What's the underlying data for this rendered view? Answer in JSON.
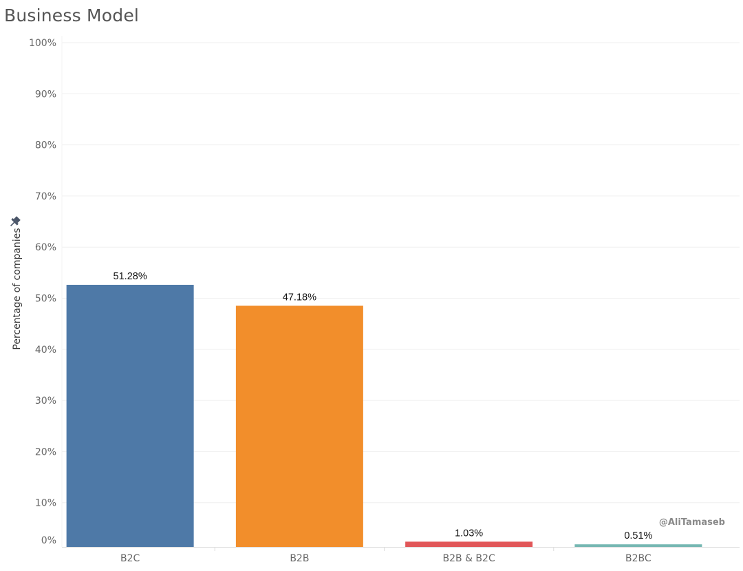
{
  "page_title": "Business Model",
  "watermark": "@AliTamaseb",
  "pin_icon": "pin-icon",
  "chart_data": {
    "type": "bar",
    "title": "Business Model",
    "xlabel": "",
    "ylabel": "Percentage of companies",
    "ylim": [
      0,
      100
    ],
    "yticks": [
      "0%",
      "10%",
      "20%",
      "30%",
      "40%",
      "50%",
      "60%",
      "70%",
      "80%",
      "90%",
      "100%"
    ],
    "categories": [
      "B2C",
      "B2B",
      "B2B & B2C",
      "B2BC"
    ],
    "values": [
      51.28,
      47.18,
      1.03,
      0.51
    ],
    "value_labels": [
      "51.28%",
      "47.18%",
      "1.03%",
      "0.51%"
    ],
    "colors": [
      "#4e79a7",
      "#f28e2b",
      "#e15759",
      "#76b7b2"
    ],
    "grid": true,
    "legend": "none"
  }
}
